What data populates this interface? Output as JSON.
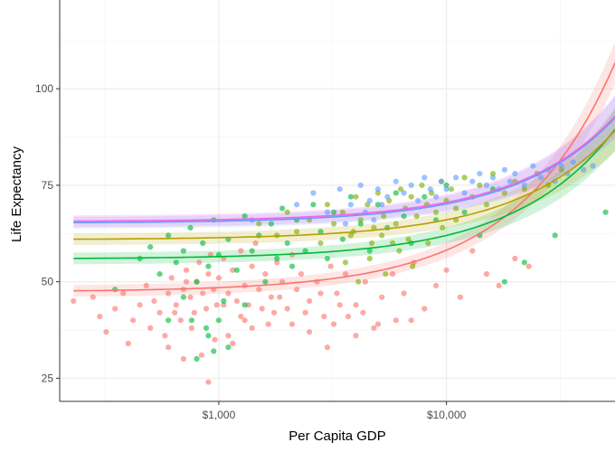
{
  "chart_data": {
    "type": "scatter",
    "title": "",
    "xlabel": "Per Capita GDP",
    "ylabel": "Life Expectancy",
    "x_scale": "log10",
    "xlim": [
      200,
      55000
    ],
    "ylim": [
      19,
      123
    ],
    "grid": true,
    "legend": "none",
    "x_ticks": [
      {
        "value": 1000,
        "label": "$1,000"
      },
      {
        "value": 10000,
        "label": "$10,000"
      }
    ],
    "y_ticks": [
      {
        "value": 25,
        "label": "25"
      },
      {
        "value": 50,
        "label": "50"
      },
      {
        "value": 75,
        "label": "75"
      },
      {
        "value": 100,
        "label": "100"
      }
    ],
    "x_minor_ticks": [
      316,
      3162,
      31623
    ],
    "y_minor_ticks": [
      37.5,
      62.5,
      87.5,
      112.5
    ],
    "series": [
      {
        "color": "#F8766D",
        "points": [
          [
            230,
            45
          ],
          [
            280,
            46
          ],
          [
            300,
            41
          ],
          [
            320,
            37
          ],
          [
            350,
            43
          ],
          [
            380,
            47
          ],
          [
            400,
            34
          ],
          [
            420,
            40
          ],
          [
            450,
            44
          ],
          [
            480,
            49
          ],
          [
            500,
            38
          ],
          [
            520,
            45
          ],
          [
            550,
            42
          ],
          [
            580,
            36
          ],
          [
            600,
            47
          ],
          [
            620,
            51
          ],
          [
            650,
            44
          ],
          [
            680,
            40
          ],
          [
            700,
            48
          ],
          [
            720,
            53
          ],
          [
            750,
            46
          ],
          [
            780,
            42
          ],
          [
            800,
            50
          ],
          [
            820,
            55
          ],
          [
            850,
            47
          ],
          [
            880,
            43
          ],
          [
            900,
            52
          ],
          [
            920,
            57
          ],
          [
            950,
            48
          ],
          [
            980,
            44
          ],
          [
            1000,
            51
          ],
          [
            1050,
            56
          ],
          [
            1100,
            47
          ],
          [
            1150,
            53
          ],
          [
            1200,
            45
          ],
          [
            1250,
            58
          ],
          [
            1300,
            49
          ],
          [
            1350,
            44
          ],
          [
            1400,
            54
          ],
          [
            1450,
            60
          ],
          [
            1500,
            48
          ],
          [
            1600,
            52
          ],
          [
            1700,
            46
          ],
          [
            1800,
            55
          ],
          [
            1900,
            50
          ],
          [
            2000,
            43
          ],
          [
            2100,
            57
          ],
          [
            2200,
            48
          ],
          [
            2300,
            52
          ],
          [
            2500,
            45
          ],
          [
            2700,
            50
          ],
          [
            2900,
            41
          ],
          [
            3100,
            54
          ],
          [
            3300,
            47
          ],
          [
            3600,
            52
          ],
          [
            4000,
            44
          ],
          [
            4400,
            50
          ],
          [
            4800,
            38
          ],
          [
            5200,
            46
          ],
          [
            5800,
            52
          ],
          [
            6500,
            47
          ],
          [
            7200,
            55
          ],
          [
            8000,
            43
          ],
          [
            9000,
            49
          ],
          [
            10000,
            53
          ],
          [
            11500,
            46
          ],
          [
            13000,
            58
          ],
          [
            15000,
            52
          ],
          [
            17000,
            49
          ],
          [
            20000,
            56
          ],
          [
            23000,
            54
          ],
          [
            900,
            24
          ],
          [
            600,
            33
          ],
          [
            700,
            30
          ],
          [
            1100,
            36
          ],
          [
            1300,
            40
          ],
          [
            2500,
            37
          ],
          [
            3000,
            33
          ],
          [
            4000,
            36
          ],
          [
            5000,
            39
          ],
          [
            760,
            38
          ],
          [
            840,
            31
          ],
          [
            960,
            35
          ],
          [
            1150,
            34
          ],
          [
            1400,
            38
          ],
          [
            1750,
            42
          ],
          [
            640,
            42
          ],
          [
            720,
            50
          ],
          [
            1050,
            44
          ],
          [
            1250,
            41
          ],
          [
            1550,
            43
          ],
          [
            1650,
            39
          ],
          [
            1850,
            46
          ],
          [
            2100,
            39
          ],
          [
            2400,
            42
          ],
          [
            2800,
            47
          ],
          [
            3200,
            39
          ],
          [
            3400,
            44
          ],
          [
            3700,
            41
          ],
          [
            4300,
            42
          ],
          [
            6000,
            40
          ],
          [
            7000,
            40
          ]
        ]
      },
      {
        "color": "#7CAE00",
        "points": [
          [
            1500,
            65
          ],
          [
            1800,
            62
          ],
          [
            2000,
            68
          ],
          [
            2200,
            63
          ],
          [
            2500,
            66
          ],
          [
            2800,
            60
          ],
          [
            3000,
            70
          ],
          [
            3200,
            65
          ],
          [
            3500,
            68
          ],
          [
            3800,
            62
          ],
          [
            4000,
            72
          ],
          [
            4200,
            66
          ],
          [
            4500,
            70
          ],
          [
            4800,
            64
          ],
          [
            5000,
            73
          ],
          [
            5300,
            67
          ],
          [
            5600,
            71
          ],
          [
            6000,
            65
          ],
          [
            6300,
            74
          ],
          [
            6600,
            69
          ],
          [
            7000,
            72
          ],
          [
            7400,
            67
          ],
          [
            7800,
            75
          ],
          [
            8200,
            70
          ],
          [
            8600,
            73
          ],
          [
            9000,
            68
          ],
          [
            9500,
            76
          ],
          [
            10000,
            71
          ],
          [
            10500,
            74
          ],
          [
            11000,
            69
          ],
          [
            12000,
            77
          ],
          [
            13000,
            72
          ],
          [
            14000,
            75
          ],
          [
            15000,
            70
          ],
          [
            16000,
            78
          ],
          [
            18000,
            73
          ],
          [
            20000,
            76
          ],
          [
            22000,
            74
          ],
          [
            25000,
            78
          ],
          [
            28000,
            75
          ],
          [
            32000,
            79
          ],
          [
            4600,
            56
          ],
          [
            5400,
            52
          ],
          [
            6200,
            58
          ],
          [
            7100,
            54
          ],
          [
            8300,
            60
          ],
          [
            3600,
            55
          ],
          [
            4100,
            50
          ],
          [
            5800,
            60
          ],
          [
            3900,
            63
          ],
          [
            4700,
            60
          ],
          [
            5200,
            62
          ],
          [
            6800,
            61
          ],
          [
            9600,
            64
          ],
          [
            11000,
            66
          ]
        ]
      },
      {
        "color": "#00BA38",
        "points": [
          [
            350,
            48
          ],
          [
            450,
            56
          ],
          [
            500,
            59
          ],
          [
            550,
            52
          ],
          [
            600,
            62
          ],
          [
            650,
            55
          ],
          [
            700,
            58
          ],
          [
            750,
            64
          ],
          [
            800,
            50
          ],
          [
            850,
            60
          ],
          [
            900,
            54
          ],
          [
            950,
            66
          ],
          [
            1000,
            57
          ],
          [
            1050,
            45
          ],
          [
            1100,
            61
          ],
          [
            1200,
            53
          ],
          [
            1300,
            67
          ],
          [
            1400,
            58
          ],
          [
            1500,
            62
          ],
          [
            1600,
            50
          ],
          [
            1700,
            65
          ],
          [
            1800,
            56
          ],
          [
            1900,
            69
          ],
          [
            2000,
            60
          ],
          [
            2100,
            54
          ],
          [
            2200,
            66
          ],
          [
            2400,
            58
          ],
          [
            2600,
            70
          ],
          [
            2800,
            63
          ],
          [
            3000,
            56
          ],
          [
            3200,
            68
          ],
          [
            3500,
            61
          ],
          [
            3800,
            72
          ],
          [
            4200,
            65
          ],
          [
            4600,
            58
          ],
          [
            5000,
            70
          ],
          [
            5500,
            64
          ],
          [
            6000,
            73
          ],
          [
            6500,
            67
          ],
          [
            7000,
            60
          ],
          [
            8000,
            72
          ],
          [
            9000,
            66
          ],
          [
            10000,
            75
          ],
          [
            12000,
            68
          ],
          [
            14000,
            62
          ],
          [
            16000,
            74
          ],
          [
            18000,
            50
          ],
          [
            22000,
            55
          ],
          [
            30000,
            62
          ],
          [
            50000,
            68
          ],
          [
            800,
            30
          ],
          [
            900,
            36
          ],
          [
            1000,
            40
          ],
          [
            1100,
            33
          ],
          [
            950,
            32
          ],
          [
            880,
            38
          ],
          [
            760,
            40
          ],
          [
            1300,
            44
          ],
          [
            600,
            40
          ],
          [
            700,
            46
          ]
        ]
      },
      {
        "color": "#619CFF",
        "points": [
          [
            1400,
            66
          ],
          [
            2200,
            70
          ],
          [
            2600,
            73
          ],
          [
            3000,
            68
          ],
          [
            3400,
            74
          ],
          [
            3800,
            70
          ],
          [
            4200,
            75
          ],
          [
            4600,
            71
          ],
          [
            5000,
            74
          ],
          [
            5500,
            72
          ],
          [
            6000,
            76
          ],
          [
            6500,
            73
          ],
          [
            7000,
            75
          ],
          [
            7500,
            71
          ],
          [
            8000,
            77
          ],
          [
            8500,
            74
          ],
          [
            9000,
            72
          ],
          [
            9500,
            76
          ],
          [
            10000,
            74
          ],
          [
            11000,
            77
          ],
          [
            12000,
            73
          ],
          [
            13000,
            76
          ],
          [
            14000,
            78
          ],
          [
            15000,
            75
          ],
          [
            16000,
            77
          ],
          [
            17000,
            74
          ],
          [
            18000,
            79
          ],
          [
            19000,
            76
          ],
          [
            20000,
            78
          ],
          [
            22000,
            75
          ],
          [
            24000,
            80
          ],
          [
            26000,
            77
          ],
          [
            28000,
            79
          ],
          [
            30000,
            76
          ],
          [
            32000,
            80
          ],
          [
            34000,
            78
          ],
          [
            36000,
            81
          ],
          [
            40000,
            79
          ],
          [
            44000,
            80
          ],
          [
            3600,
            65
          ],
          [
            4400,
            68
          ],
          [
            4800,
            66
          ],
          [
            5200,
            70
          ]
        ]
      },
      {
        "color": "#F564E3",
        "points": []
      }
    ],
    "fit_lines": [
      {
        "color": "#F8766D",
        "a": 47.4,
        "b": 0.001078
      },
      {
        "color": "#00BA38",
        "a": 55.9,
        "b": 0.000611
      },
      {
        "color": "#B79F00",
        "a": 60.9,
        "b": 0.000514
      },
      {
        "color": "#619CFF",
        "a": 65.2,
        "b": 0.000496
      },
      {
        "color": "#F564E3",
        "a": 65.6,
        "b": 0.000496
      }
    ]
  }
}
